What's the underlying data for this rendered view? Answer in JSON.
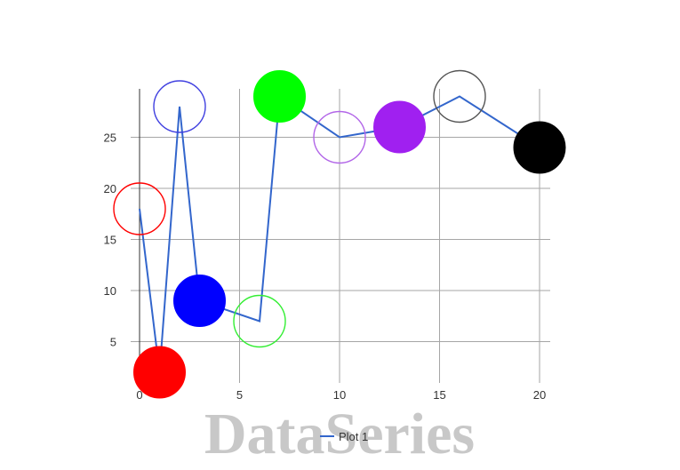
{
  "watermark": "DataSeries",
  "chart_data": {
    "type": "line",
    "title": "",
    "xlabel": "",
    "ylabel": "",
    "xlim": [
      0,
      20
    ],
    "ylim": [
      0,
      29
    ],
    "x_ticks": [
      0,
      5,
      10,
      15,
      20
    ],
    "y_ticks": [
      5,
      10,
      15,
      20,
      25
    ],
    "grid": true,
    "legend": {
      "position": "bottom",
      "entries": [
        "Plot 1"
      ]
    },
    "line_color": "#3366cc",
    "series": [
      {
        "name": "Plot 1",
        "x": [
          0,
          1,
          2,
          3,
          6,
          7,
          10,
          13,
          16,
          20
        ],
        "y": [
          18,
          2,
          28,
          9,
          7,
          29,
          25,
          26,
          29,
          24
        ],
        "markers": [
          {
            "color": "#ff0000",
            "filled": false
          },
          {
            "color": "#ff0000",
            "filled": true
          },
          {
            "color": "#4040e0",
            "filled": false
          },
          {
            "color": "#0000ff",
            "filled": true
          },
          {
            "color": "#33ee33",
            "filled": false
          },
          {
            "color": "#00ff00",
            "filled": true
          },
          {
            "color": "#b266e8",
            "filled": false
          },
          {
            "color": "#a020f0",
            "filled": true
          },
          {
            "color": "#555555",
            "filled": false
          },
          {
            "color": "#000000",
            "filled": true
          }
        ]
      }
    ]
  }
}
